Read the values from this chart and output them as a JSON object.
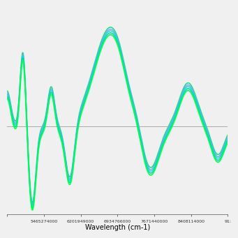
{
  "title": "",
  "xlabel": "Wavelength (cm-1)",
  "ylabel": "",
  "xlim": [
    4728599000,
    9144988000
  ],
  "ylim": [
    -0.42,
    0.62
  ],
  "x_ticks": [
    4728599000,
    5465274000,
    6201949000,
    6934766000,
    7671440000,
    8408114000,
    9144988000
  ],
  "x_tick_labels": [
    "",
    "5465274000",
    "6201949000",
    "6934766000",
    "7671440000",
    "8408114000",
    "91:"
  ],
  "background_color": "#f0f0f0",
  "plot_bg_color": "#f0f0f0",
  "hline_color": "#aaaaaa",
  "line_colors": [
    "#00ff55",
    "#00ccaa",
    "#00e5cc",
    "#8899ff",
    "#00dd77"
  ],
  "line_widths": [
    1.4,
    1.1,
    1.1,
    1.1,
    1.1
  ],
  "n_lines": 5
}
